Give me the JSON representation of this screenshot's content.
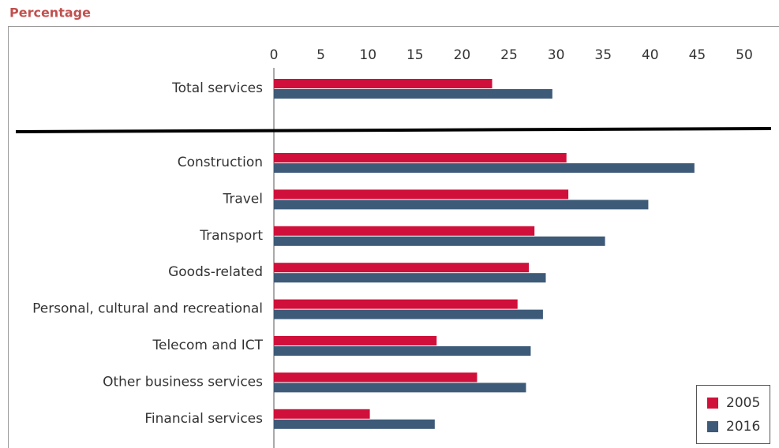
{
  "chart_data": {
    "type": "bar",
    "orientation": "horizontal",
    "title": "Percentage",
    "categories": [
      "Total services",
      "Construction",
      "Travel",
      "Transport",
      "Goods-related",
      "Personal, cultural and recreational",
      "Telecom and ICT",
      "Other business services",
      "Financial services"
    ],
    "series": [
      {
        "name": "2005",
        "color": "#d0103a",
        "values": [
          23.2,
          31.1,
          31.3,
          27.7,
          27.1,
          25.9,
          17.3,
          21.6,
          10.2
        ]
      },
      {
        "name": "2016",
        "color": "#3d5a78",
        "values": [
          29.6,
          44.7,
          39.8,
          35.2,
          28.9,
          28.6,
          27.3,
          26.8,
          17.1
        ]
      }
    ],
    "xlim": [
      0,
      53
    ],
    "xticks": [
      0,
      5,
      10,
      15,
      20,
      25,
      30,
      35,
      40,
      45,
      50
    ],
    "grid": false,
    "legend": "lower right"
  }
}
